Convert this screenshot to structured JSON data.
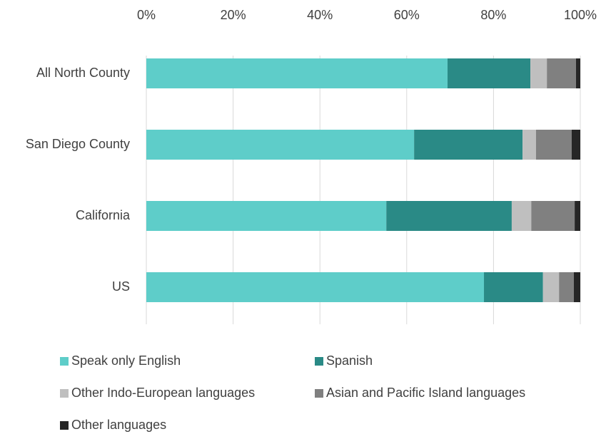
{
  "chart_data": {
    "type": "stacked_bar_horizontal",
    "categories": [
      "All North County",
      "San Diego County",
      "California",
      "US"
    ],
    "series": [
      {
        "name": "Speak only English",
        "color": "#5ecdc9",
        "values": [
          69.4,
          61.7,
          55.3,
          77.8
        ]
      },
      {
        "name": "Spanish",
        "color": "#2a8a86",
        "values": [
          19.1,
          25.0,
          28.9,
          13.6
        ]
      },
      {
        "name": "Other Indo-European languages",
        "color": "#bfbfbf",
        "values": [
          3.8,
          3.1,
          4.5,
          3.7
        ]
      },
      {
        "name": "Asian and Pacific Island languages",
        "color": "#808080",
        "values": [
          6.7,
          8.2,
          10.0,
          3.4
        ]
      },
      {
        "name": "Other languages",
        "color": "#262626",
        "values": [
          1.0,
          2.0,
          1.3,
          1.5
        ]
      }
    ],
    "xlim": [
      0,
      100
    ],
    "xticks": [
      {
        "value": 0,
        "label": "0%"
      },
      {
        "value": 20,
        "label": "20%"
      },
      {
        "value": 40,
        "label": "40%"
      },
      {
        "value": 60,
        "label": "60%"
      },
      {
        "value": 80,
        "label": "80%"
      },
      {
        "value": 100,
        "label": "100%"
      }
    ],
    "grid": true
  }
}
